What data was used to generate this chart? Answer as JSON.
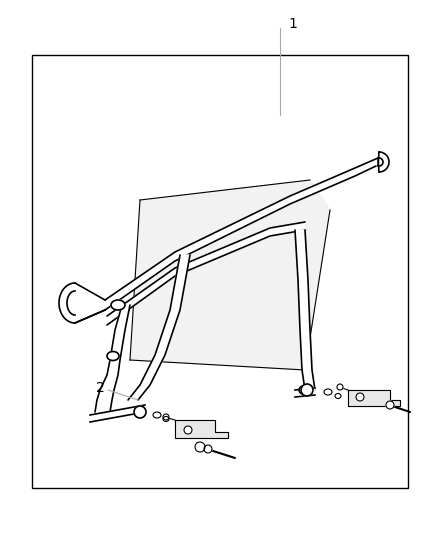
{
  "background_color": "#ffffff",
  "line_color": "#000000",
  "gray_line": "#888888",
  "label_1": "1",
  "label_2": "2",
  "fig_width": 4.38,
  "fig_height": 5.33,
  "dpi": 100,
  "border": [
    32,
    55,
    408,
    488
  ],
  "callout1_line": [
    [
      280,
      28
    ],
    [
      280,
      55
    ]
  ],
  "callout1_text": [
    290,
    22
  ],
  "callout2_line": [
    [
      118,
      388
    ],
    [
      165,
      375
    ]
  ],
  "callout2_text": [
    108,
    392
  ]
}
